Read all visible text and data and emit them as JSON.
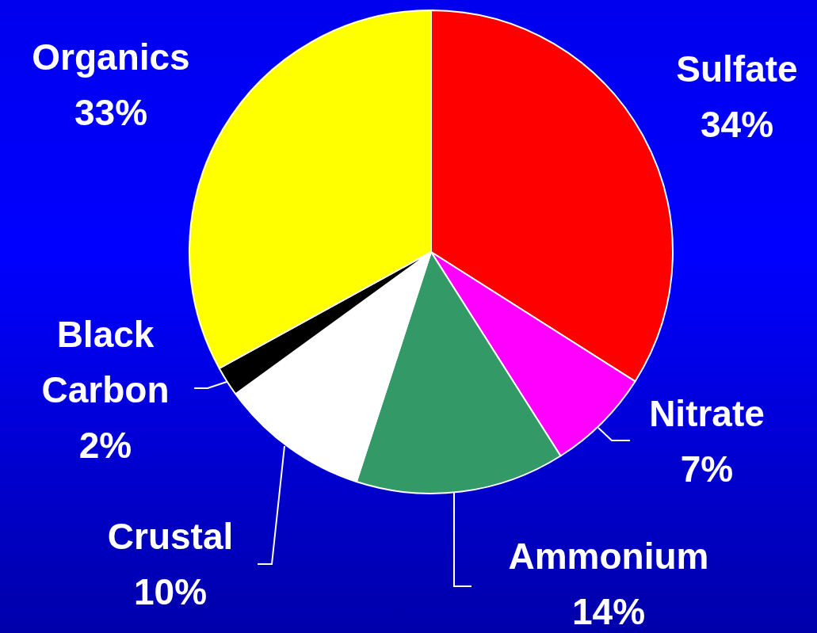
{
  "chart_data": {
    "type": "pie",
    "categories": [
      "Sulfate",
      "Nitrate",
      "Ammonium",
      "Crustal",
      "Black Carbon",
      "Organics"
    ],
    "values": [
      34,
      7,
      14,
      10,
      2,
      33
    ],
    "colors": [
      "#ff0000",
      "#ff00ff",
      "#339966",
      "#ffffff",
      "#000000",
      "#ffff00"
    ],
    "value_labels": [
      "34%",
      "7%",
      "14%",
      "10%",
      "2%",
      "33%"
    ],
    "legend": false
  }
}
